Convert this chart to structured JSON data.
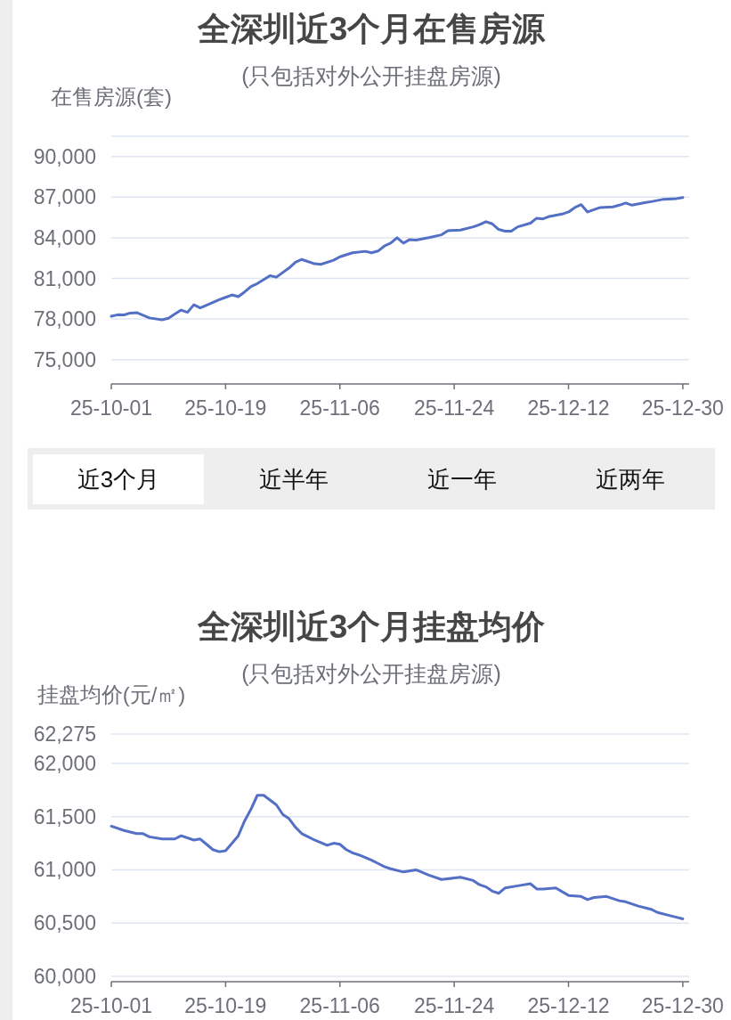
{
  "chart_data": [
    {
      "type": "line",
      "title": "全深圳近3个月在售房源",
      "subtitle": "(只包括对外公开挂盘房源)",
      "ylabel": "在售房源(套)",
      "x": [
        "--10-01",
        "--10-02",
        "--10-03",
        "--10-04",
        "--10-05",
        "--10-07",
        "--10-09",
        "--10-10",
        "--10-11",
        "--10-12",
        "--10-13",
        "--10-14",
        "--10-15",
        "--10-16",
        "--10-18",
        "--10-19",
        "--10-20",
        "--10-21",
        "--10-22",
        "--10-23",
        "--10-24",
        "--10-26",
        "--10-27",
        "--10-29",
        "--10-30",
        "--10-31",
        "--11-02",
        "--11-03",
        "--11-05",
        "--11-06",
        "--11-08",
        "--11-10",
        "--11-11",
        "--11-12",
        "--11-13",
        "--11-14",
        "--11-15",
        "--11-16",
        "--11-17",
        "--11-18",
        "--11-20",
        "--11-22",
        "--11-23",
        "--11-25",
        "--11-27",
        "--11-28",
        "--11-29",
        "--11-30",
        "--12-01",
        "--12-02",
        "--12-03",
        "--12-04",
        "--12-06",
        "--12-07",
        "--12-08",
        "--12-09",
        "--12-11",
        "--12-12",
        "--12-13",
        "--12-14",
        "--12-15",
        "--12-17",
        "--12-19",
        "--12-20",
        "--12-21",
        "--12-22",
        "--12-24",
        "--12-25",
        "--12-27",
        "--12-29",
        "--12-30"
      ],
      "series": [
        {
          "color": "#5470c6",
          "values": [
            78200,
            78310,
            78300,
            78440,
            78470,
            78080,
            77940,
            78050,
            78360,
            78660,
            78490,
            79050,
            78820,
            79020,
            79430,
            79600,
            79780,
            79650,
            80000,
            80400,
            80620,
            81200,
            81090,
            81770,
            82200,
            82400,
            82080,
            82040,
            82340,
            82600,
            82890,
            83000,
            82890,
            83020,
            83390,
            83610,
            84010,
            83610,
            83870,
            83830,
            84010,
            84220,
            84530,
            84570,
            84810,
            84970,
            85190,
            85030,
            84620,
            84490,
            84490,
            84810,
            85080,
            85450,
            85400,
            85580,
            85750,
            85910,
            86240,
            86450,
            85910,
            86240,
            86280,
            86410,
            86570,
            86410,
            86590,
            86670,
            86850,
            86900,
            86980
          ]
        }
      ],
      "xlim": [
        "--10-01",
        "--12-31"
      ],
      "xticks": [
        {
          "value": "--10-01",
          "label": "25-10-01"
        },
        {
          "value": "--10-19",
          "label": "25-10-19"
        },
        {
          "value": "--11-06",
          "label": "25-11-06"
        },
        {
          "value": "--11-24",
          "label": "25-11-24"
        },
        {
          "value": "--12-12",
          "label": "25-12-12"
        },
        {
          "value": "--12-30",
          "label": "25-12-30"
        }
      ],
      "ylim": [
        73200,
        91500
      ],
      "yticks": [
        {
          "value": 75000,
          "label": "75,000"
        },
        {
          "value": 78000,
          "label": "78,000"
        },
        {
          "value": 81000,
          "label": "81,000"
        },
        {
          "value": 84000,
          "label": "84,000"
        },
        {
          "value": 87000,
          "label": "87,000"
        },
        {
          "value": 90000,
          "label": "90,000"
        },
        {
          "value": 91500,
          "label": null
        }
      ],
      "grid": "y",
      "marker": "none",
      "line_style": "solid",
      "annotations": [
        "近3个月",
        "近半年",
        "近一年",
        "近两年"
      ]
    },
    {
      "type": "line",
      "title": "全深圳近3个月挂盘均价",
      "subtitle": "(只包括对外公开挂盘房源)",
      "ylabel": "挂盘均价(元/㎡)",
      "x": [
        "--10-01",
        "--10-03",
        "--10-05",
        "--10-06",
        "--10-07",
        "--10-09",
        "--10-11",
        "--10-12",
        "--10-14",
        "--10-15",
        "--10-16",
        "--10-17",
        "--10-18",
        "--10-19",
        "--10-21",
        "--10-22",
        "--10-23",
        "--10-24",
        "--10-25",
        "--10-27",
        "--10-28",
        "--10-29",
        "--10-30",
        "--10-31",
        "--11-01",
        "--11-02",
        "--11-04",
        "--11-05",
        "--11-06",
        "--11-07",
        "--11-08",
        "--11-09",
        "--11-11",
        "--11-12",
        "--11-13",
        "--11-14",
        "--11-16",
        "--11-18",
        "--11-20",
        "--11-22",
        "--11-25",
        "--11-27",
        "--11-28",
        "--11-29",
        "--11-30",
        "--12-01",
        "--12-02",
        "--12-04",
        "--12-06",
        "--12-07",
        "--12-08",
        "--12-10",
        "--12-12",
        "--12-14",
        "--12-15",
        "--12-16",
        "--12-18",
        "--12-20",
        "--12-21",
        "--12-23",
        "--12-25",
        "--12-26",
        "--12-28",
        "--12-30"
      ],
      "series": [
        {
          "color": "#5470c6",
          "values": [
            61410,
            61370,
            61340,
            61340,
            61310,
            61290,
            61290,
            61320,
            61280,
            61290,
            61240,
            61190,
            61170,
            61180,
            61320,
            61460,
            61570,
            61700,
            61700,
            61610,
            61520,
            61480,
            61400,
            61340,
            61310,
            61280,
            61230,
            61250,
            61240,
            61190,
            61160,
            61140,
            61090,
            61060,
            61030,
            61010,
            60980,
            61000,
            60950,
            60910,
            60930,
            60900,
            60860,
            60840,
            60800,
            60780,
            60830,
            60850,
            60870,
            60820,
            60820,
            60830,
            60760,
            60750,
            60720,
            60740,
            60750,
            60710,
            60700,
            60660,
            60630,
            60600,
            60570,
            60540
          ]
        }
      ],
      "xlim": [
        "--10-01",
        "--12-31"
      ],
      "xticks": [
        {
          "value": "--10-01",
          "label": "25-10-01"
        },
        {
          "value": "--10-19",
          "label": "25-10-19"
        },
        {
          "value": "--11-06",
          "label": "25-11-06"
        },
        {
          "value": "--11-24",
          "label": "25-11-24"
        },
        {
          "value": "--12-12",
          "label": "25-12-12"
        },
        {
          "value": "--12-30",
          "label": "25-12-30"
        }
      ],
      "ylim": [
        59950,
        62275
      ],
      "yticks": [
        {
          "value": 60000,
          "label": "60,000"
        },
        {
          "value": 60500,
          "label": "60,500"
        },
        {
          "value": 61000,
          "label": "61,000"
        },
        {
          "value": 61500,
          "label": "61,500"
        },
        {
          "value": 62000,
          "label": "62,000"
        },
        {
          "value": 62275,
          "label": "62,275"
        }
      ],
      "grid": "y",
      "marker": "none",
      "line_style": "solid"
    }
  ]
}
